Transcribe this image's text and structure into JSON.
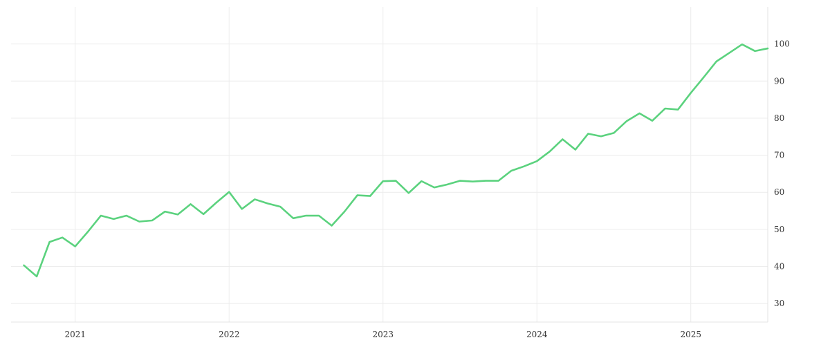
{
  "colors": {
    "series": "#5bd27e",
    "grid": "#ececec",
    "text": "#333333",
    "background": "#ffffff"
  },
  "chart_data": {
    "type": "line",
    "title": "",
    "xlabel": "",
    "ylabel": "",
    "grid": true,
    "y_axis_side": "right",
    "x_ticks": [
      "2021",
      "2022",
      "2023",
      "2024",
      "2025"
    ],
    "y_ticks": [
      30,
      40,
      50,
      60,
      70,
      80,
      90,
      100
    ],
    "ylim": [
      25,
      110
    ],
    "xlim": [
      "2020-08-01",
      "2025-07-01"
    ],
    "series": [
      {
        "color": "#5bd27e",
        "points": [
          [
            "2020-09",
            40.3
          ],
          [
            "2020-10",
            37.3
          ],
          [
            "2020-11",
            46.6
          ],
          [
            "2020-12",
            47.8
          ],
          [
            "2021-01",
            45.4
          ],
          [
            "2021-02",
            49.4
          ],
          [
            "2021-03",
            53.7
          ],
          [
            "2021-04",
            52.8
          ],
          [
            "2021-05",
            53.7
          ],
          [
            "2021-06",
            52.1
          ],
          [
            "2021-07",
            52.4
          ],
          [
            "2021-08",
            54.8
          ],
          [
            "2021-09",
            54.0
          ],
          [
            "2021-10",
            56.8
          ],
          [
            "2021-11",
            54.1
          ],
          [
            "2021-12",
            57.2
          ],
          [
            "2022-01",
            60.1
          ],
          [
            "2022-02",
            55.5
          ],
          [
            "2022-03",
            58.1
          ],
          [
            "2022-04",
            57.0
          ],
          [
            "2022-05",
            56.1
          ],
          [
            "2022-06",
            53.0
          ],
          [
            "2022-07",
            53.7
          ],
          [
            "2022-08",
            53.7
          ],
          [
            "2022-09",
            51.0
          ],
          [
            "2022-10",
            54.8
          ],
          [
            "2022-11",
            59.2
          ],
          [
            "2022-12",
            59.0
          ],
          [
            "2023-01",
            63.0
          ],
          [
            "2023-02",
            63.1
          ],
          [
            "2023-03",
            59.8
          ],
          [
            "2023-04",
            63.0
          ],
          [
            "2023-05",
            61.3
          ],
          [
            "2023-06",
            62.1
          ],
          [
            "2023-07",
            63.1
          ],
          [
            "2023-08",
            62.9
          ],
          [
            "2023-09",
            63.1
          ],
          [
            "2023-10",
            63.1
          ],
          [
            "2023-11",
            65.8
          ],
          [
            "2023-12",
            67.0
          ],
          [
            "2024-01",
            68.4
          ],
          [
            "2024-02",
            71.0
          ],
          [
            "2024-03",
            74.3
          ],
          [
            "2024-04",
            71.5
          ],
          [
            "2024-05",
            75.8
          ],
          [
            "2024-06",
            75.1
          ],
          [
            "2024-07",
            76.0
          ],
          [
            "2024-08",
            79.2
          ],
          [
            "2024-09",
            81.3
          ],
          [
            "2024-10",
            79.3
          ],
          [
            "2024-11",
            82.6
          ],
          [
            "2024-12",
            82.3
          ],
          [
            "2025-01",
            86.8
          ],
          [
            "2025-02",
            91.0
          ],
          [
            "2025-03",
            95.3
          ],
          [
            "2025-04",
            97.6
          ],
          [
            "2025-05",
            99.9
          ],
          [
            "2025-06",
            98.1
          ],
          [
            "2025-07",
            98.8
          ]
        ]
      }
    ]
  }
}
